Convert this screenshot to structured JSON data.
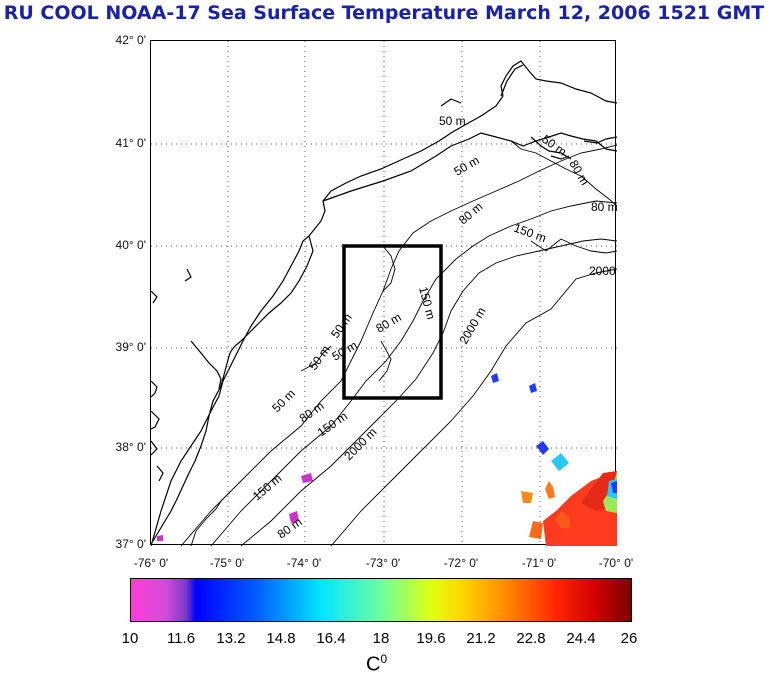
{
  "title": "RU COOL  NOAA-17 Sea Surface Temperature March 12, 2006 1521 GMT",
  "lat_labels": [
    "42° 0'",
    "41° 0'",
    "40° 0'",
    "39° 0'",
    "38° 0'",
    "37° 0'"
  ],
  "lon_labels": [
    "-76° 0'",
    "-75° 0'",
    "-74° 0'",
    "-73° 0'",
    "-72° 0'",
    "-71° 0'",
    "-70° 0'"
  ],
  "colorbar": {
    "ticks": [
      "10",
      "11.6",
      "13.2",
      "14.8",
      "16.4",
      "18",
      "19.6",
      "21.2",
      "22.8",
      "24.4",
      "26"
    ],
    "units": "C",
    "units_superscript": "0",
    "min": 10,
    "max": 26
  },
  "contour_labels": [
    "50 m",
    "50 m",
    "80 m",
    "80 m",
    "150 m",
    "2000",
    "50 m",
    "80 m",
    "150 m",
    "2000 m",
    "50 m",
    "50 m",
    "80 m",
    "2000 m",
    "150 m",
    "80 m",
    "80 m",
    "50 m",
    "50 m",
    "150 m"
  ],
  "study_box": {
    "lon_min": -73.4,
    "lon_max": -72.4,
    "lat_min": 38.5,
    "lat_max": 40.0
  },
  "colors": {
    "title": "#1a22a8",
    "land_outline": "#000000",
    "gridline": "#555555"
  }
}
